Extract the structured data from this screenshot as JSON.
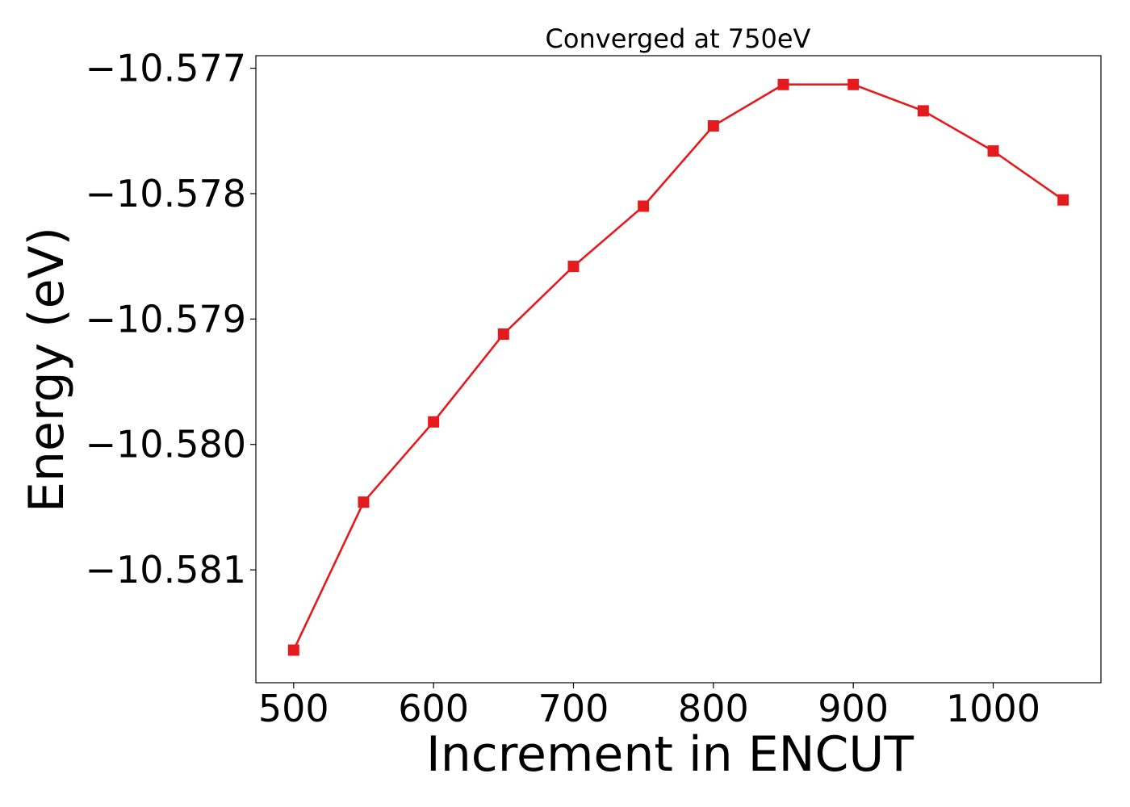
{
  "chart_data": {
    "type": "line",
    "title": "Converged at 750eV",
    "xlabel": "Increment in ENCUT",
    "ylabel": "Energy (eV)",
    "xlim": [
      473,
      1077
    ],
    "ylim": [
      -10.5819,
      -10.5769
    ],
    "xticks": [
      500,
      600,
      700,
      800,
      900,
      1000
    ],
    "xtick_labels": [
      "500",
      "600",
      "700",
      "800",
      "900",
      "1000"
    ],
    "yticks": [
      -10.577,
      -10.578,
      -10.579,
      -10.58,
      -10.581
    ],
    "ytick_labels": [
      "−10.577",
      "−10.578",
      "−10.579",
      "−10.580",
      "−10.581"
    ],
    "grid": false,
    "series": [
      {
        "color": "#e41a1c",
        "marker": "square",
        "x": [
          500,
          550,
          600,
          650,
          700,
          750,
          800,
          850,
          900,
          950,
          1000,
          1050
        ],
        "y": [
          -10.58164,
          -10.58046,
          -10.57982,
          -10.57912,
          -10.57858,
          -10.5781,
          -10.57746,
          -10.57713,
          -10.57713,
          -10.57734,
          -10.57766,
          -10.57805
        ]
      }
    ]
  }
}
